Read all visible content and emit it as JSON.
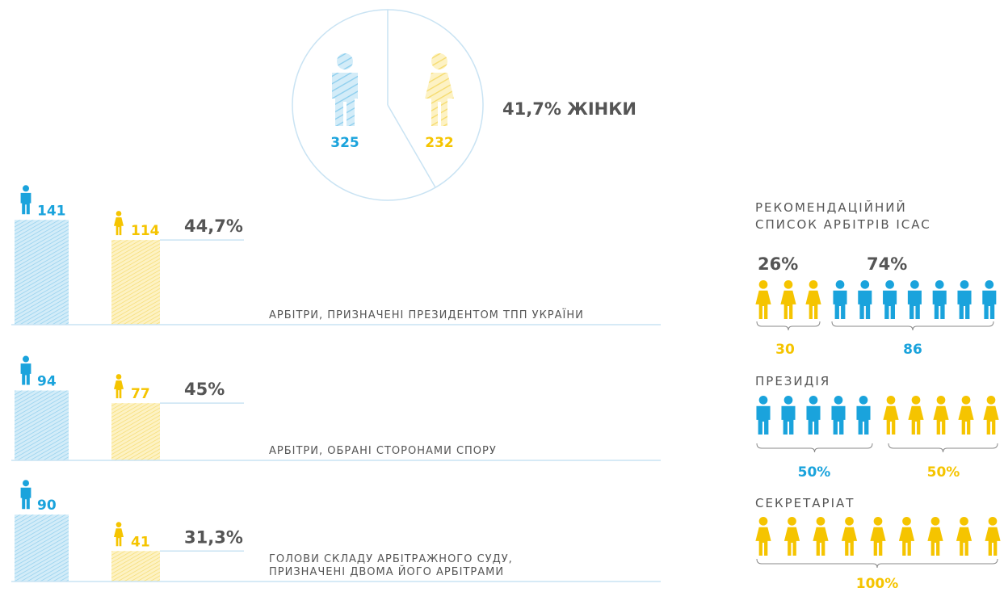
{
  "circle": {
    "men": 325,
    "women": 232,
    "label": "41,7% ЖІНКИ"
  },
  "groups": [
    {
      "men": 141,
      "women": 114,
      "share": "44,7%",
      "label": [
        "АРБІТРИ, ПРИЗНАЧЕНІ ПРЕЗИДЕНТОМ ТПП УКРАЇНИ"
      ]
    },
    {
      "men": 94,
      "women": 77,
      "share": "45%",
      "label": [
        "АРБІТРИ, ОБРАНІ СТОРОНАМИ СПОРУ"
      ]
    },
    {
      "men": 90,
      "women": 41,
      "share": "31,3%",
      "label": [
        "ГОЛОВИ СКЛАДУ АРБІТРАЖНОГО СУДУ,",
        "ПРИЗНАЧЕНІ ДВОМА ЙОГО АРБІТРАМИ"
      ]
    }
  ],
  "panels": [
    {
      "title": [
        "РЕКОМЕНДАЦІЙНИЙ",
        "СПИСОК АРБІТРІВ ICAC"
      ],
      "women_share": "26%",
      "men_share": "74%",
      "women": 30,
      "men": 86
    },
    {
      "title": [
        "ПРЕЗИДІЯ"
      ],
      "men_share": "50%",
      "women_share": "50%"
    },
    {
      "title": [
        "СЕКРЕТАРІАТ"
      ],
      "women_share": "100%"
    }
  ]
}
